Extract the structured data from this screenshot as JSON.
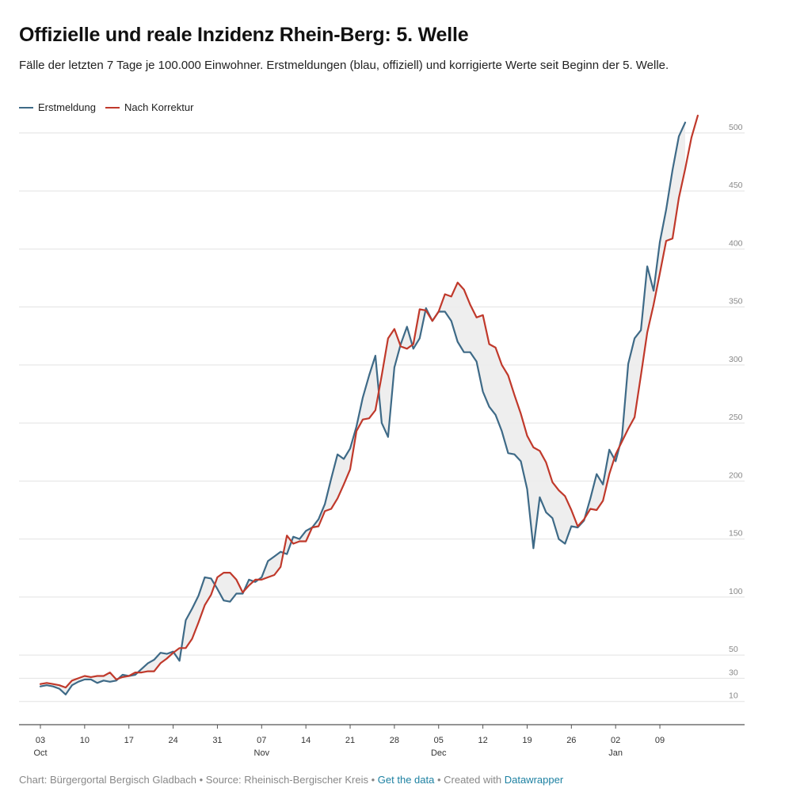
{
  "title": "Offizielle und reale Inzidenz Rhein-Berg: 5. Welle",
  "subtitle": "Fälle der letzten 7 Tage je 100.000 Einwohner. Erstmeldungen (blau, offiziell) und korrigierte Werte seit Beginn der 5. Welle.",
  "legend": [
    {
      "name": "Erstmeldung",
      "color": "#3e6a87"
    },
    {
      "name": "Nach Korrektur",
      "color": "#c0392b"
    }
  ],
  "footer": {
    "chart_credit": "Chart: Bürgergortal Bergisch Gladbach",
    "sep1": " • ",
    "source": "Source: Rheinisch-Bergischer Kreis",
    "sep2": " • ",
    "get_data": "Get the data",
    "sep3": " • Created with ",
    "datawrapper": "Datawrapper"
  },
  "chart_data": {
    "type": "line",
    "x_axis": {
      "ticks": [
        {
          "label": "03",
          "month": "Oct",
          "day": 3
        },
        {
          "label": "10",
          "month": "",
          "day": 10
        },
        {
          "label": "17",
          "month": "",
          "day": 17
        },
        {
          "label": "24",
          "month": "",
          "day": 24
        },
        {
          "label": "31",
          "month": "",
          "day": 31
        },
        {
          "label": "07",
          "month": "Nov",
          "day": 38
        },
        {
          "label": "14",
          "month": "",
          "day": 45
        },
        {
          "label": "21",
          "month": "",
          "day": 52
        },
        {
          "label": "28",
          "month": "",
          "day": 59
        },
        {
          "label": "05",
          "month": "Dec",
          "day": 66
        },
        {
          "label": "12",
          "month": "",
          "day": 73
        },
        {
          "label": "19",
          "month": "",
          "day": 80
        },
        {
          "label": "26",
          "month": "",
          "day": 87
        },
        {
          "label": "02",
          "month": "Jan",
          "day": 94
        },
        {
          "label": "09",
          "month": "",
          "day": 101
        }
      ]
    },
    "y_axis": {
      "ticks": [
        10,
        30,
        50,
        100,
        150,
        200,
        250,
        300,
        350,
        400,
        450,
        500
      ],
      "ylim": [
        -10,
        515
      ]
    },
    "series": [
      {
        "name": "Erstmeldung",
        "color": "#3e6a87",
        "points": [
          [
            0,
            23
          ],
          [
            1,
            24
          ],
          [
            2,
            23
          ],
          [
            3,
            21
          ],
          [
            4,
            16
          ],
          [
            5,
            24
          ],
          [
            6,
            27
          ],
          [
            7,
            29
          ],
          [
            8,
            29
          ],
          [
            9,
            26
          ],
          [
            10,
            28
          ],
          [
            11,
            27
          ],
          [
            12,
            28
          ],
          [
            13,
            33
          ],
          [
            14,
            32
          ],
          [
            15,
            33
          ],
          [
            16,
            38
          ],
          [
            17,
            43
          ],
          [
            18,
            46
          ],
          [
            19,
            52
          ],
          [
            20,
            51
          ],
          [
            21,
            53
          ],
          [
            22,
            45
          ],
          [
            23,
            80
          ],
          [
            24,
            90
          ],
          [
            25,
            101
          ],
          [
            26,
            117
          ],
          [
            27,
            116
          ],
          [
            28,
            107
          ],
          [
            29,
            97
          ],
          [
            30,
            96
          ],
          [
            31,
            103
          ],
          [
            32,
            103
          ],
          [
            33,
            115
          ],
          [
            34,
            113
          ],
          [
            35,
            117
          ],
          [
            36,
            131
          ],
          [
            37,
            135
          ],
          [
            38,
            139
          ],
          [
            39,
            137
          ],
          [
            40,
            152
          ],
          [
            41,
            150
          ],
          [
            42,
            157
          ],
          [
            43,
            160
          ],
          [
            44,
            167
          ],
          [
            45,
            180
          ],
          [
            46,
            202
          ],
          [
            47,
            223
          ],
          [
            48,
            219
          ],
          [
            49,
            228
          ],
          [
            50,
            247
          ],
          [
            51,
            272
          ],
          [
            52,
            291
          ],
          [
            53,
            308
          ],
          [
            54,
            250
          ],
          [
            55,
            238
          ],
          [
            56,
            298
          ],
          [
            57,
            318
          ],
          [
            58,
            333
          ],
          [
            59,
            314
          ],
          [
            60,
            323
          ],
          [
            61,
            349
          ],
          [
            62,
            338
          ],
          [
            63,
            346
          ],
          [
            64,
            346
          ],
          [
            65,
            338
          ],
          [
            66,
            320
          ],
          [
            67,
            311
          ],
          [
            68,
            311
          ],
          [
            69,
            303
          ],
          [
            70,
            277
          ],
          [
            71,
            264
          ],
          [
            72,
            257
          ],
          [
            73,
            243
          ],
          [
            74,
            224
          ],
          [
            75,
            223
          ],
          [
            76,
            217
          ],
          [
            77,
            193
          ],
          [
            78,
            142
          ],
          [
            79,
            186
          ],
          [
            80,
            173
          ],
          [
            81,
            168
          ],
          [
            82,
            150
          ],
          [
            83,
            146
          ],
          [
            84,
            161
          ],
          [
            85,
            160
          ],
          [
            86,
            166
          ],
          [
            87,
            185
          ],
          [
            88,
            206
          ],
          [
            89,
            197
          ],
          [
            90,
            227
          ],
          [
            91,
            217
          ],
          [
            92,
            238
          ],
          [
            93,
            301
          ],
          [
            94,
            323
          ],
          [
            95,
            330
          ],
          [
            96,
            385
          ],
          [
            97,
            364
          ],
          [
            98,
            406
          ],
          [
            99,
            434
          ],
          [
            100,
            468
          ],
          [
            101,
            497
          ],
          [
            102,
            509
          ]
        ]
      },
      {
        "name": "Nach Korrektur",
        "color": "#c0392b",
        "points": [
          [
            0,
            25
          ],
          [
            1,
            26
          ],
          [
            2,
            25
          ],
          [
            3,
            24
          ],
          [
            4,
            22
          ],
          [
            5,
            28
          ],
          [
            6,
            30
          ],
          [
            7,
            32
          ],
          [
            8,
            31
          ],
          [
            9,
            32
          ],
          [
            10,
            32
          ],
          [
            11,
            35
          ],
          [
            12,
            29
          ],
          [
            13,
            31
          ],
          [
            14,
            32
          ],
          [
            15,
            35
          ],
          [
            16,
            35
          ],
          [
            17,
            36
          ],
          [
            18,
            36
          ],
          [
            19,
            43
          ],
          [
            20,
            47
          ],
          [
            21,
            52
          ],
          [
            22,
            56
          ],
          [
            23,
            56
          ],
          [
            24,
            64
          ],
          [
            25,
            78
          ],
          [
            26,
            93
          ],
          [
            27,
            102
          ],
          [
            28,
            117
          ],
          [
            29,
            121
          ],
          [
            30,
            121
          ],
          [
            31,
            115
          ],
          [
            32,
            104
          ],
          [
            33,
            110
          ],
          [
            34,
            115
          ],
          [
            35,
            115
          ],
          [
            36,
            117
          ],
          [
            37,
            119
          ],
          [
            38,
            126
          ],
          [
            39,
            153
          ],
          [
            40,
            146
          ],
          [
            41,
            148
          ],
          [
            42,
            148
          ],
          [
            43,
            160
          ],
          [
            44,
            161
          ],
          [
            45,
            174
          ],
          [
            46,
            176
          ],
          [
            47,
            185
          ],
          [
            48,
            197
          ],
          [
            49,
            210
          ],
          [
            50,
            243
          ],
          [
            51,
            253
          ],
          [
            52,
            254
          ],
          [
            53,
            261
          ],
          [
            54,
            291
          ],
          [
            55,
            323
          ],
          [
            56,
            331
          ],
          [
            57,
            316
          ],
          [
            58,
            314
          ],
          [
            59,
            318
          ],
          [
            60,
            348
          ],
          [
            61,
            347
          ],
          [
            62,
            338
          ],
          [
            63,
            346
          ],
          [
            64,
            361
          ],
          [
            65,
            359
          ],
          [
            66,
            371
          ],
          [
            67,
            365
          ],
          [
            68,
            352
          ],
          [
            69,
            341
          ],
          [
            70,
            343
          ],
          [
            71,
            318
          ],
          [
            72,
            315
          ],
          [
            73,
            300
          ],
          [
            74,
            291
          ],
          [
            75,
            274
          ],
          [
            76,
            258
          ],
          [
            77,
            239
          ],
          [
            78,
            229
          ],
          [
            79,
            226
          ],
          [
            80,
            216
          ],
          [
            81,
            199
          ],
          [
            82,
            192
          ],
          [
            83,
            187
          ],
          [
            84,
            175
          ],
          [
            85,
            161
          ],
          [
            86,
            167
          ],
          [
            87,
            176
          ],
          [
            88,
            175
          ],
          [
            89,
            183
          ],
          [
            90,
            206
          ],
          [
            91,
            223
          ],
          [
            92,
            234
          ],
          [
            93,
            245
          ],
          [
            94,
            255
          ],
          [
            95,
            291
          ],
          [
            96,
            328
          ],
          [
            97,
            352
          ],
          [
            98,
            379
          ],
          [
            99,
            407
          ],
          [
            100,
            409
          ],
          [
            101,
            444
          ],
          [
            102,
            469
          ],
          [
            103,
            496
          ],
          [
            104,
            515
          ]
        ]
      }
    ],
    "grid": true
  }
}
